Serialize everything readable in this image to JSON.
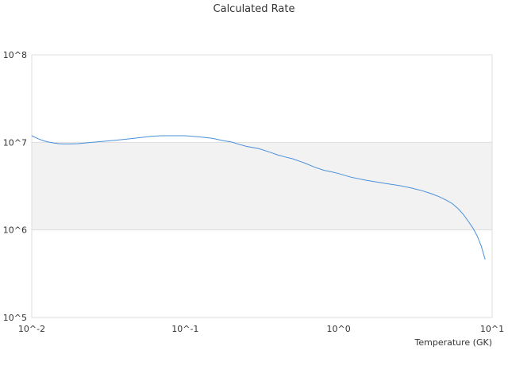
{
  "chart_data": {
    "type": "line",
    "title": "Calculated Rate",
    "xlabel": "Temperature (GK)",
    "ylabel": "",
    "x_scale": "log",
    "y_scale": "log",
    "xlim": [
      0.01,
      10
    ],
    "ylim": [
      100000,
      100000000
    ],
    "x_ticks": [
      {
        "value": 0.01,
        "label": "10^-2"
      },
      {
        "value": 0.1,
        "label": "10^-1"
      },
      {
        "value": 1,
        "label": "10^0"
      },
      {
        "value": 10,
        "label": "10^1"
      }
    ],
    "y_ticks": [
      {
        "value": 100000,
        "label": "10^5"
      },
      {
        "value": 1000000,
        "label": "10^6"
      },
      {
        "value": 10000000,
        "label": "10^7"
      },
      {
        "value": 100000000,
        "label": "10^8"
      }
    ],
    "shaded_band": [
      1000000,
      10000000
    ],
    "grid": true,
    "series": [
      {
        "color": "#4a90d9",
        "x": [
          0.01,
          0.011,
          0.012,
          0.013,
          0.014,
          0.015,
          0.016,
          0.018,
          0.02,
          0.025,
          0.03,
          0.04,
          0.05,
          0.06,
          0.07,
          0.08,
          0.1,
          0.12,
          0.15,
          0.18,
          0.2,
          0.22,
          0.25,
          0.3,
          0.35,
          0.4,
          0.45,
          0.5,
          0.6,
          0.7,
          0.8,
          0.9,
          1.0,
          1.2,
          1.5,
          2.0,
          2.5,
          3.0,
          3.5,
          4.0,
          4.5,
          5.0,
          5.5,
          6.0,
          6.5,
          7.0,
          7.5,
          8.0,
          8.5,
          9.0
        ],
        "y": [
          11900000,
          11000000,
          10400000,
          10050000,
          9800000,
          9650000,
          9600000,
          9600000,
          9650000,
          10000000,
          10300000,
          10800000,
          11300000,
          11700000,
          11900000,
          11900000,
          11900000,
          11600000,
          11100000,
          10400000,
          10100000,
          9600000,
          9000000,
          8500000,
          7800000,
          7200000,
          6800000,
          6500000,
          5800000,
          5200000,
          4800000,
          4600000,
          4400000,
          4000000,
          3700000,
          3400000,
          3200000,
          3000000,
          2800000,
          2600000,
          2400000,
          2200000,
          2000000,
          1750000,
          1500000,
          1250000,
          1050000,
          850000,
          650000,
          460000
        ]
      }
    ]
  }
}
